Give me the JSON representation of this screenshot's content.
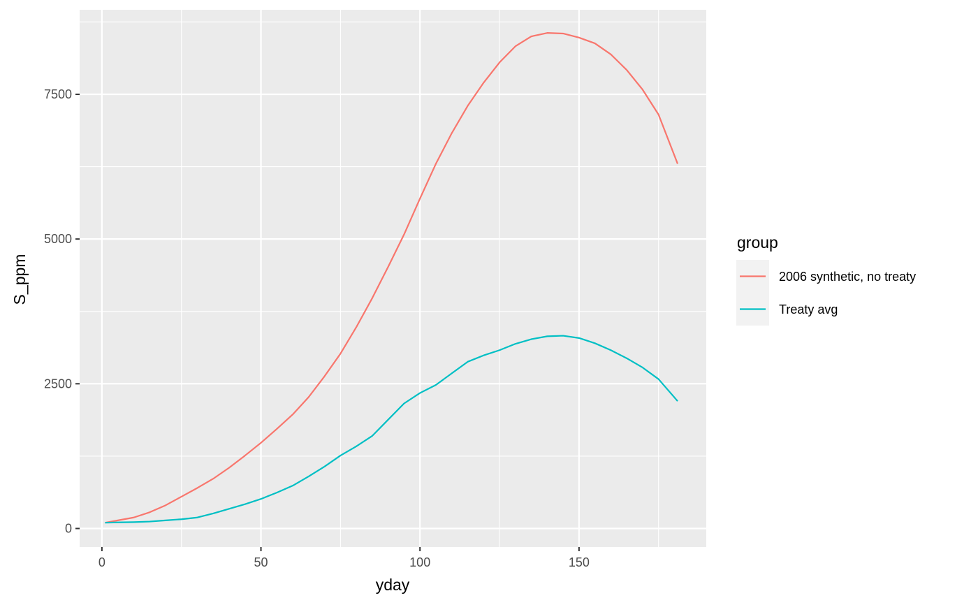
{
  "chart_data": {
    "type": "line",
    "title": "",
    "xlabel": "yday",
    "ylabel": "S_ppm",
    "xlim": [
      -7,
      190
    ],
    "ylim": [
      -320,
      8960
    ],
    "x_ticks": [
      0,
      50,
      100,
      150
    ],
    "x_tick_labels": [
      "0",
      "50",
      "100",
      "150"
    ],
    "y_ticks": [
      0,
      2500,
      5000,
      7500
    ],
    "y_tick_labels": [
      "0",
      "2500",
      "5000",
      "7500"
    ],
    "grid": true,
    "background": "#ebebeb",
    "legend": {
      "title": "group",
      "placement": "right"
    },
    "series": [
      {
        "name": "2006 synthetic, no treaty",
        "color": "#f8766d",
        "x": [
          1,
          5,
          10,
          15,
          20,
          25,
          30,
          35,
          40,
          45,
          50,
          55,
          60,
          65,
          70,
          75,
          80,
          85,
          90,
          95,
          100,
          105,
          110,
          115,
          120,
          125,
          130,
          135,
          140,
          145,
          150,
          155,
          160,
          165,
          170,
          175,
          181
        ],
        "y": [
          100,
          140,
          190,
          280,
          400,
          550,
          700,
          860,
          1050,
          1260,
          1480,
          1720,
          1970,
          2270,
          2630,
          3020,
          3480,
          3980,
          4520,
          5080,
          5700,
          6300,
          6830,
          7300,
          7700,
          8050,
          8330,
          8500,
          8560,
          8550,
          8480,
          8380,
          8190,
          7920,
          7580,
          7150,
          6300
        ]
      },
      {
        "name": "Treaty avg",
        "color": "#00bfc4",
        "x": [
          1,
          5,
          10,
          15,
          20,
          25,
          30,
          35,
          40,
          45,
          50,
          55,
          60,
          65,
          70,
          75,
          80,
          85,
          90,
          95,
          100,
          105,
          110,
          115,
          120,
          125,
          130,
          135,
          140,
          145,
          150,
          155,
          160,
          165,
          170,
          175,
          181
        ],
        "y": [
          100,
          105,
          110,
          120,
          140,
          160,
          190,
          260,
          340,
          420,
          510,
          620,
          740,
          900,
          1070,
          1260,
          1420,
          1600,
          1880,
          2160,
          2340,
          2480,
          2680,
          2880,
          2990,
          3080,
          3190,
          3270,
          3320,
          3330,
          3290,
          3200,
          3080,
          2940,
          2780,
          2580,
          2200
        ]
      }
    ]
  }
}
